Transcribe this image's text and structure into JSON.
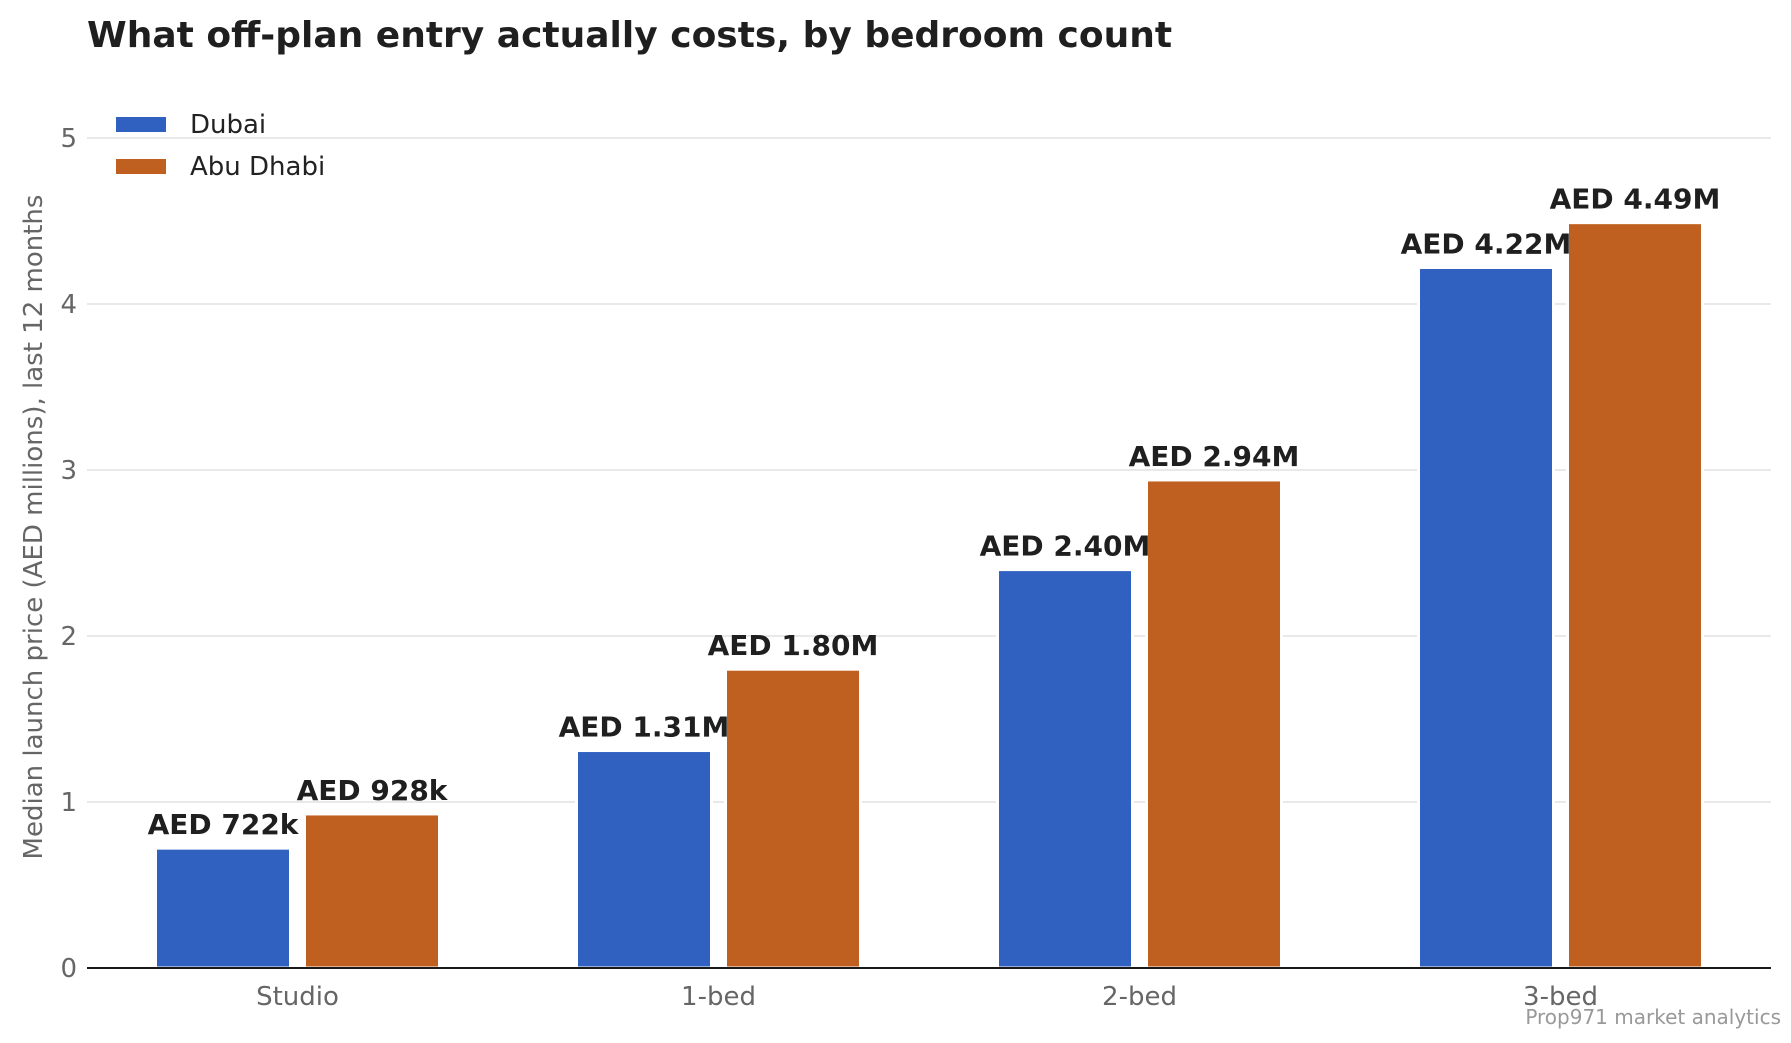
{
  "chart_data": {
    "type": "bar",
    "title": "What off-plan entry actually costs, by bedroom count",
    "xlabel": "",
    "ylabel": "Median launch price (AED millions), last 12 months",
    "categories": [
      "Studio",
      "1-bed",
      "2-bed",
      "3-bed"
    ],
    "ylim": [
      0,
      5
    ],
    "yticks": [
      0,
      1,
      2,
      3,
      4,
      5
    ],
    "grid": true,
    "legend_position": "top-left",
    "series": [
      {
        "name": "Dubai",
        "color": "#3060c0",
        "values": [
          0.722,
          1.31,
          2.4,
          4.22
        ],
        "labels": [
          "AED 722k",
          "AED 1.31M",
          "AED 2.40M",
          "AED 4.22M"
        ]
      },
      {
        "name": "Abu Dhabi",
        "color": "#c06020",
        "values": [
          0.928,
          1.8,
          2.94,
          4.49
        ],
        "labels": [
          "AED 928k",
          "AED 1.80M",
          "AED 2.94M",
          "AED 4.49M"
        ]
      }
    ],
    "source": "Prop971 market analytics"
  }
}
